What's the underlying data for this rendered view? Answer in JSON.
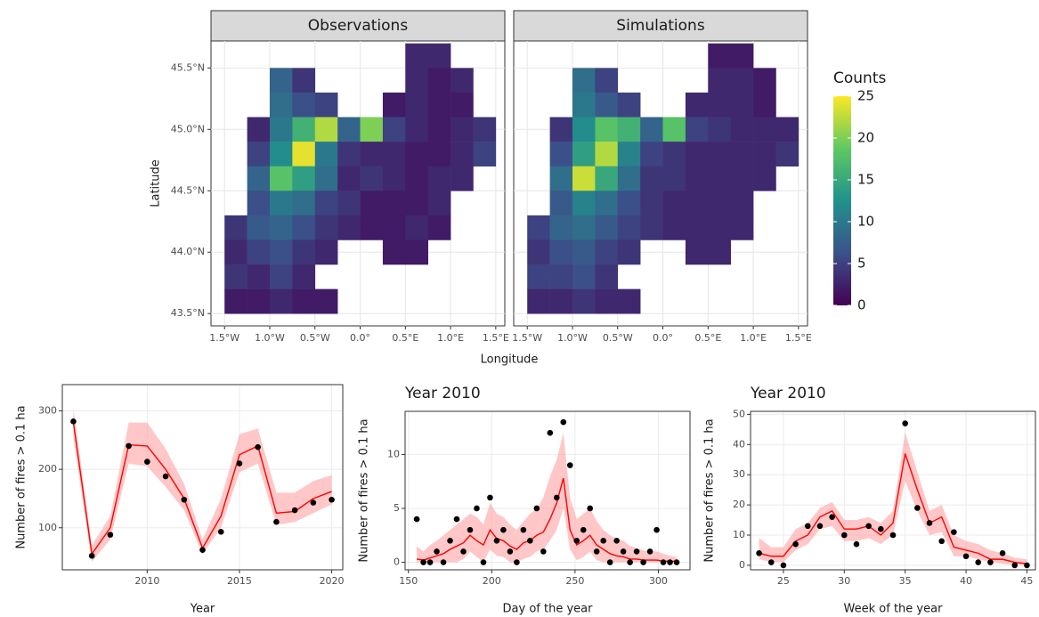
{
  "chart_data": [
    {
      "type": "heatmap",
      "facets": [
        "Observations",
        "Simulations"
      ],
      "xlabel": "Longitude",
      "ylabel": "Latitude",
      "x": [
        -1.375,
        -1.125,
        -0.875,
        -0.625,
        -0.375,
        -0.125,
        0.125,
        0.375,
        0.625,
        0.875,
        1.125,
        1.375
      ],
      "y": [
        45.6,
        45.4,
        45.2,
        45.0,
        44.8,
        44.6,
        44.4,
        44.2,
        44.0,
        43.8,
        43.6
      ],
      "values": [
        [
          [
            null,
            null,
            null,
            null,
            null,
            null,
            null,
            null,
            3,
            3,
            null,
            null
          ],
          [
            null,
            null,
            8,
            4,
            null,
            null,
            null,
            null,
            3,
            2,
            3,
            null
          ],
          [
            null,
            null,
            9,
            6,
            5,
            null,
            null,
            2,
            3,
            2,
            2,
            null
          ],
          [
            null,
            3,
            10,
            16,
            22,
            8,
            20,
            5,
            3,
            2,
            3,
            4
          ],
          [
            null,
            5,
            12,
            24,
            10,
            4,
            3,
            3,
            2,
            2,
            3,
            5
          ],
          [
            null,
            8,
            18,
            14,
            9,
            3,
            4,
            3,
            2,
            3,
            3,
            null
          ],
          [
            null,
            6,
            10,
            9,
            5,
            4,
            2,
            2,
            2,
            3,
            null,
            null
          ],
          [
            4,
            7,
            8,
            6,
            4,
            3,
            2,
            2,
            3,
            2,
            null,
            null
          ],
          [
            3,
            5,
            6,
            4,
            3,
            null,
            null,
            2,
            2,
            null,
            null,
            null
          ],
          [
            4,
            3,
            5,
            3,
            null,
            null,
            null,
            null,
            null,
            null,
            null,
            null
          ],
          [
            2,
            2,
            3,
            2,
            2,
            null,
            null,
            null,
            null,
            null,
            null,
            null
          ]
        ],
        [
          [
            null,
            null,
            null,
            null,
            null,
            null,
            null,
            null,
            2,
            2,
            null,
            null
          ],
          [
            null,
            null,
            9,
            5,
            null,
            null,
            null,
            null,
            3,
            3,
            2,
            null
          ],
          [
            null,
            null,
            10,
            7,
            5,
            null,
            null,
            3,
            3,
            3,
            2,
            null
          ],
          [
            null,
            4,
            12,
            18,
            16,
            8,
            18,
            5,
            4,
            3,
            3,
            3
          ],
          [
            null,
            6,
            14,
            22,
            11,
            5,
            4,
            3,
            3,
            3,
            3,
            4
          ],
          [
            null,
            9,
            23,
            15,
            9,
            4,
            4,
            3,
            3,
            3,
            3,
            null
          ],
          [
            null,
            7,
            11,
            9,
            6,
            4,
            3,
            3,
            3,
            3,
            null,
            null
          ],
          [
            5,
            8,
            9,
            7,
            5,
            4,
            3,
            3,
            3,
            3,
            null,
            null
          ],
          [
            4,
            6,
            7,
            5,
            4,
            null,
            null,
            3,
            3,
            null,
            null,
            null
          ],
          [
            5,
            5,
            6,
            4,
            null,
            null,
            null,
            null,
            null,
            null,
            null,
            null
          ],
          [
            3,
            3,
            4,
            3,
            3,
            null,
            null,
            null,
            null,
            null,
            null,
            null
          ]
        ]
      ],
      "xlim": [
        -1.65,
        1.6
      ],
      "ylim": [
        43.4,
        45.72
      ],
      "xticks": [
        {
          "value": -1.5,
          "label": "1.5°W"
        },
        {
          "value": -1.0,
          "label": "1.0°W"
        },
        {
          "value": -0.5,
          "label": "0.5°W"
        },
        {
          "value": 0,
          "label": "0.0°"
        },
        {
          "value": 0.5,
          "label": "0.5°E"
        },
        {
          "value": 1.0,
          "label": "1.0°E"
        },
        {
          "value": 1.5,
          "label": "1.5°E"
        }
      ],
      "yticks": [
        {
          "value": 43.5,
          "label": "43.5°N"
        },
        {
          "value": 44.0,
          "label": "44.0°N"
        },
        {
          "value": 44.5,
          "label": "44.5°N"
        },
        {
          "value": 45.0,
          "label": "45.0°N"
        },
        {
          "value": 45.5,
          "label": "45.5°N"
        }
      ],
      "colorbar": {
        "title": "Counts",
        "lim": [
          0,
          25
        ],
        "ticks": [
          0,
          5,
          10,
          15,
          20,
          25
        ],
        "colors": [
          "#440154",
          "#3b528b",
          "#21918c",
          "#5ec962",
          "#fde725"
        ]
      },
      "grid": true
    },
    {
      "type": "line",
      "xlabel": "Year",
      "ylabel": "Number of fires > 0.1 ha",
      "x": [
        2006,
        2007,
        2008,
        2009,
        2010,
        2011,
        2012,
        2013,
        2014,
        2015,
        2016,
        2017,
        2018,
        2019,
        2020
      ],
      "points": {
        "color": "#000000",
        "values": [
          282,
          52,
          88,
          240,
          213,
          188,
          148,
          62,
          93,
          210,
          238,
          110,
          130,
          143,
          148
        ]
      },
      "line": {
        "color": "#ff0000",
        "values": [
          280,
          55,
          100,
          242,
          240,
          200,
          150,
          65,
          120,
          225,
          240,
          125,
          128,
          150,
          162
        ]
      },
      "band": {
        "color": "#ff9999",
        "lower": [
          255,
          42,
          80,
          210,
          205,
          170,
          130,
          55,
          100,
          195,
          210,
          105,
          110,
          125,
          140
        ],
        "upper": [
          305,
          70,
          120,
          280,
          280,
          235,
          175,
          80,
          150,
          260,
          270,
          160,
          160,
          180,
          190
        ]
      },
      "xlim": [
        2005.4,
        2020.6
      ],
      "ylim": [
        28,
        345
      ],
      "xticks": [
        2010,
        2015,
        2020
      ],
      "yticks": [
        100,
        200,
        300
      ],
      "grid": true
    },
    {
      "type": "line",
      "title": "Year 2010",
      "xlabel": "Day of the year",
      "ylabel": "Number of fires > 0.1 ha",
      "x": [
        155,
        159,
        163,
        167,
        171,
        175,
        179,
        183,
        187,
        191,
        195,
        199,
        203,
        207,
        211,
        215,
        219,
        223,
        227,
        231,
        235,
        239,
        243,
        247,
        251,
        255,
        259,
        263,
        267,
        271,
        275,
        279,
        283,
        287,
        291,
        295,
        299,
        303,
        307,
        311
      ],
      "points": {
        "color": "#000000",
        "values": [
          4,
          0,
          0,
          1,
          0,
          2,
          4,
          1,
          3,
          5,
          0,
          6,
          2,
          3,
          1,
          0,
          3,
          2,
          5,
          1,
          12,
          6,
          13,
          9,
          2,
          3,
          5,
          1,
          2,
          0,
          2,
          1,
          0,
          1,
          0,
          1,
          3,
          0,
          0,
          0
        ]
      },
      "line": {
        "color": "#ff0000",
        "values": [
          0.3,
          0.2,
          0.4,
          0.6,
          0.8,
          1.2,
          1.5,
          1.8,
          2.5,
          2,
          1.6,
          3,
          2.2,
          2,
          1.5,
          1.2,
          1.8,
          2,
          2.5,
          2.8,
          4,
          5.5,
          7.8,
          3,
          1.6,
          2,
          2.5,
          1.6,
          1.2,
          0.8,
          0.6,
          0.5,
          0.3,
          0.3,
          0.2,
          0.2,
          0.2,
          0.1,
          0.1,
          0.1
        ]
      },
      "band": {
        "color": "#ff9999",
        "lower": [
          0,
          0,
          0,
          0,
          0,
          0,
          0,
          0.3,
          1,
          0.5,
          0,
          1.2,
          0.6,
          0.5,
          0,
          0,
          0.3,
          0.5,
          1,
          1.2,
          2,
          3,
          5,
          1.2,
          0.2,
          0.5,
          1,
          0.2,
          0,
          0,
          0,
          0,
          0,
          0,
          0,
          0,
          0,
          0,
          0,
          0
        ],
        "upper": [
          1.5,
          1,
          1.6,
          2,
          2.5,
          3,
          3.5,
          4,
          4.5,
          4.2,
          3.5,
          5.5,
          4.5,
          4.2,
          3.5,
          3,
          3.8,
          4.5,
          5,
          6,
          8,
          9.5,
          12,
          6,
          4,
          4.5,
          5,
          3.8,
          3,
          2.5,
          2.2,
          2,
          1.5,
          1.3,
          1.1,
          1,
          1,
          0.8,
          0.6,
          0.5
        ]
      },
      "xlim": [
        148,
        319
      ],
      "ylim": [
        -0.7,
        14
      ],
      "xticks": [
        150,
        200,
        250,
        300
      ],
      "yticks": [
        0,
        5,
        10
      ],
      "grid": true
    },
    {
      "type": "line",
      "title": "Year 2010",
      "xlabel": "Week of the year",
      "ylabel": "Number of fires > 0.1 ha",
      "x": [
        23,
        24,
        25,
        26,
        27,
        28,
        29,
        30,
        31,
        32,
        33,
        34,
        35,
        36,
        37,
        38,
        39,
        40,
        41,
        42,
        43,
        44,
        45
      ],
      "points": {
        "color": "#000000",
        "values": [
          4,
          1,
          0,
          7,
          13,
          13,
          16,
          10,
          7,
          13,
          12,
          10,
          47,
          19,
          14,
          8,
          11,
          3,
          1,
          1,
          4,
          0,
          0
        ]
      },
      "line": {
        "color": "#ff0000",
        "values": [
          4,
          3,
          3,
          8,
          10,
          16,
          18,
          12,
          12,
          13,
          10,
          14,
          37,
          25,
          14,
          16,
          6,
          5,
          4,
          2,
          2,
          1,
          0.5
        ]
      },
      "band": {
        "color": "#ff9999",
        "lower": [
          2,
          1,
          1,
          5,
          7,
          12,
          13,
          8,
          8,
          9,
          7,
          10,
          28,
          18,
          10,
          11,
          3,
          3,
          2,
          1,
          0.5,
          0.2,
          0
        ],
        "upper": [
          9,
          6,
          6,
          12,
          14,
          19,
          21,
          15,
          15,
          16,
          14,
          18,
          44,
          31,
          18,
          20,
          10,
          8,
          7,
          5,
          4,
          2.5,
          2
        ]
      },
      "xlim": [
        22.3,
        45.7
      ],
      "ylim": [
        -1.5,
        51
      ],
      "xticks": [
        25,
        30,
        35,
        40,
        45
      ],
      "yticks": [
        0,
        10,
        20,
        30,
        40,
        50
      ],
      "grid": true
    }
  ]
}
